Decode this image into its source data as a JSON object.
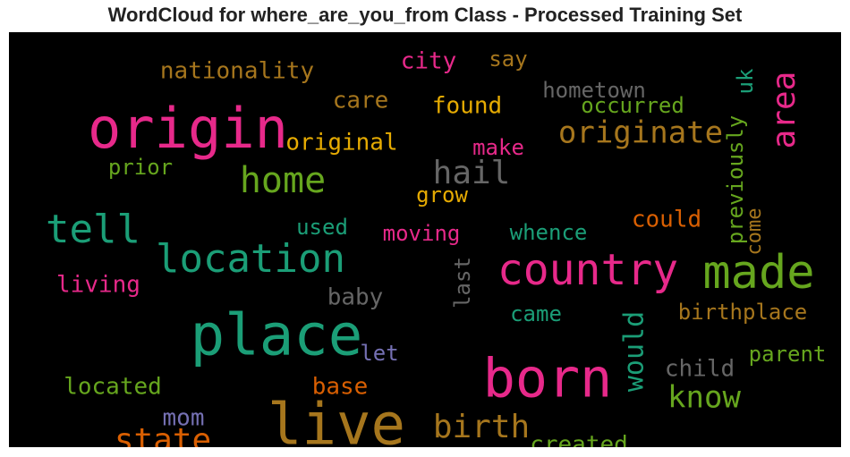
{
  "chart_data": {
    "type": "wordcloud",
    "title": "WordCloud for where_are_you_from Class - Processed Training Set",
    "background": "#000000",
    "palette": "Dark2",
    "words": [
      {
        "text": "origin",
        "color": "#e7298a"
      },
      {
        "text": "place",
        "color": "#1b9e77"
      },
      {
        "text": "live",
        "color": "#a6761d"
      },
      {
        "text": "born",
        "color": "#e7298a"
      },
      {
        "text": "country",
        "color": "#e7298a"
      },
      {
        "text": "made",
        "color": "#66a61e"
      },
      {
        "text": "location",
        "color": "#1b9e77"
      },
      {
        "text": "home",
        "color": "#66a61e"
      },
      {
        "text": "tell",
        "color": "#1b9e77"
      },
      {
        "text": "originate",
        "color": "#a6761d"
      },
      {
        "text": "area",
        "color": "#e7298a"
      },
      {
        "text": "hail",
        "color": "#666666"
      },
      {
        "text": "birth",
        "color": "#a6761d"
      },
      {
        "text": "state",
        "color": "#d95f02"
      },
      {
        "text": "know",
        "color": "#66a61e"
      },
      {
        "text": "would",
        "color": "#1b9e77"
      },
      {
        "text": "nationality",
        "color": "#a6761d"
      },
      {
        "text": "city",
        "color": "#e7298a"
      },
      {
        "text": "say",
        "color": "#a6761d"
      },
      {
        "text": "hometown",
        "color": "#666666"
      },
      {
        "text": "care",
        "color": "#a6761d"
      },
      {
        "text": "found",
        "color": "#e6ab02"
      },
      {
        "text": "occurred",
        "color": "#66a61e"
      },
      {
        "text": "uk",
        "color": "#1b9e77"
      },
      {
        "text": "original",
        "color": "#e6ab02"
      },
      {
        "text": "make",
        "color": "#e7298a"
      },
      {
        "text": "previously",
        "color": "#66a61e"
      },
      {
        "text": "prior",
        "color": "#66a61e"
      },
      {
        "text": "grow",
        "color": "#e6ab02"
      },
      {
        "text": "could",
        "color": "#d95f02"
      },
      {
        "text": "used",
        "color": "#1b9e77"
      },
      {
        "text": "moving",
        "color": "#e7298a"
      },
      {
        "text": "whence",
        "color": "#1b9e77"
      },
      {
        "text": "come",
        "color": "#a6761d"
      },
      {
        "text": "living",
        "color": "#e7298a"
      },
      {
        "text": "last",
        "color": "#666666"
      },
      {
        "text": "baby",
        "color": "#666666"
      },
      {
        "text": "came",
        "color": "#1b9e77"
      },
      {
        "text": "birthplace",
        "color": "#a6761d"
      },
      {
        "text": "let",
        "color": "#7570b3"
      },
      {
        "text": "parent",
        "color": "#66a61e"
      },
      {
        "text": "child",
        "color": "#666666"
      },
      {
        "text": "located",
        "color": "#66a61e"
      },
      {
        "text": "base",
        "color": "#d95f02"
      },
      {
        "text": "mom",
        "color": "#7570b3"
      },
      {
        "text": "created",
        "color": "#66a61e"
      }
    ]
  }
}
